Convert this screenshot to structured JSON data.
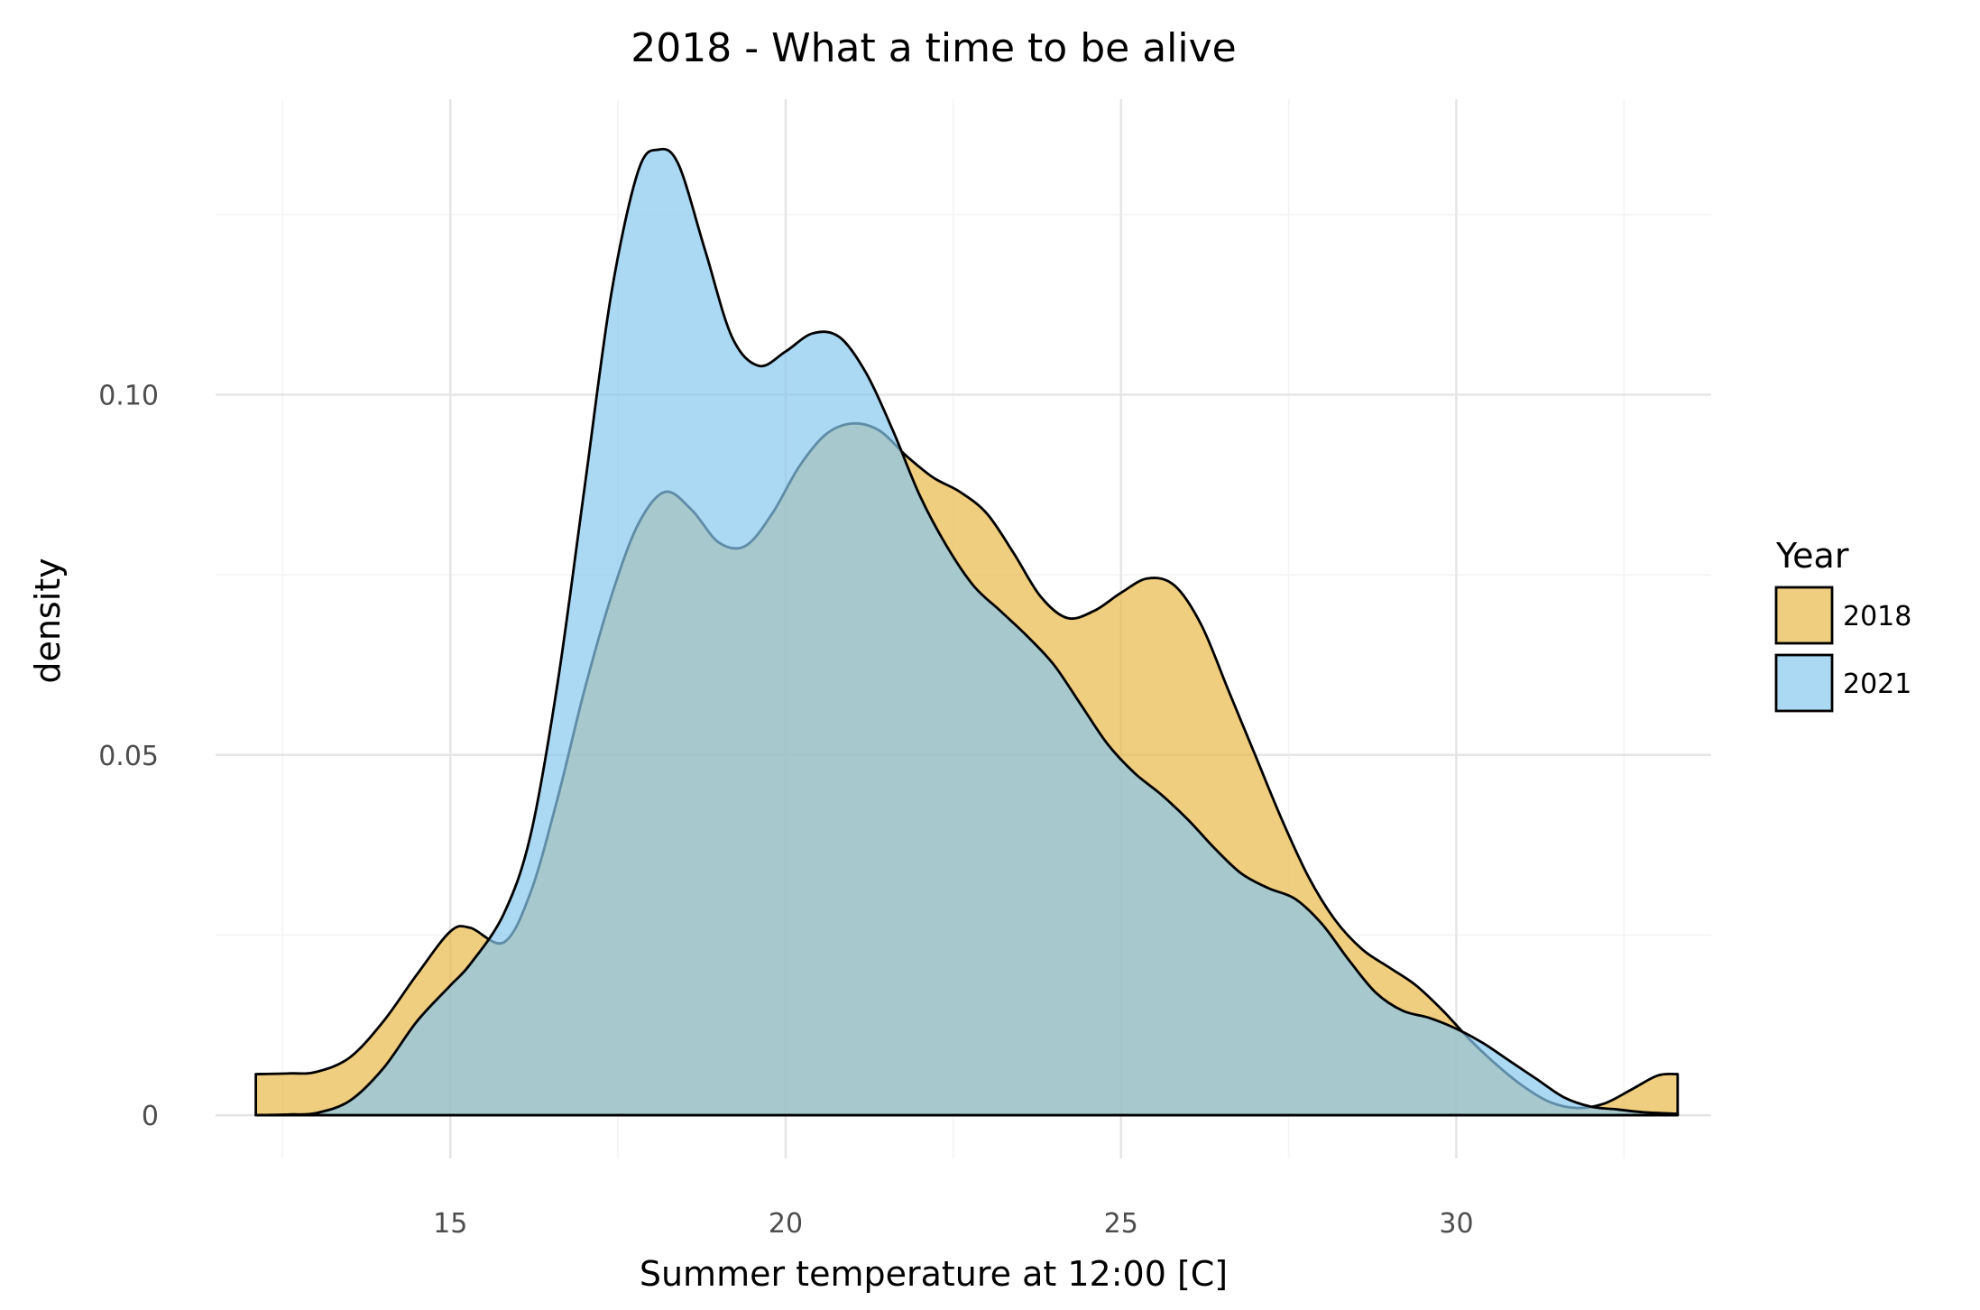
{
  "chart_data": {
    "type": "area",
    "title": "2018 - What a time to be alive",
    "xlabel": "Summer temperature at 12:00 [C]",
    "ylabel": "density",
    "xlim": [
      11.5,
      33.8
    ],
    "ylim": [
      -0.006,
      0.141
    ],
    "x_ticks": [
      15,
      20,
      25,
      30
    ],
    "x_tick_labels": [
      "15",
      "20",
      "25",
      "30"
    ],
    "y_ticks": [
      0,
      0.05,
      0.1
    ],
    "y_tick_labels": [
      "0",
      "0.05",
      "0.10"
    ],
    "grid": true,
    "legend": {
      "title": "Year",
      "position": "right"
    },
    "series": [
      {
        "name": "2018",
        "color": "#E9B949",
        "points": [
          [
            12.1,
            0.0057
          ],
          [
            12.6,
            0.0058
          ],
          [
            13.0,
            0.006
          ],
          [
            13.5,
            0.008
          ],
          [
            14.0,
            0.013
          ],
          [
            14.5,
            0.0195
          ],
          [
            15.0,
            0.0255
          ],
          [
            15.3,
            0.026
          ],
          [
            15.8,
            0.024
          ],
          [
            16.2,
            0.031
          ],
          [
            16.6,
            0.044
          ],
          [
            17.0,
            0.059
          ],
          [
            17.4,
            0.072
          ],
          [
            17.8,
            0.082
          ],
          [
            18.2,
            0.0865
          ],
          [
            18.6,
            0.084
          ],
          [
            19.0,
            0.0795
          ],
          [
            19.4,
            0.079
          ],
          [
            19.8,
            0.0835
          ],
          [
            20.2,
            0.09
          ],
          [
            20.6,
            0.0945
          ],
          [
            21.0,
            0.096
          ],
          [
            21.4,
            0.095
          ],
          [
            21.8,
            0.0915
          ],
          [
            22.2,
            0.0885
          ],
          [
            22.6,
            0.0865
          ],
          [
            23.0,
            0.0835
          ],
          [
            23.4,
            0.078
          ],
          [
            23.8,
            0.072
          ],
          [
            24.2,
            0.069
          ],
          [
            24.6,
            0.07
          ],
          [
            25.0,
            0.0725
          ],
          [
            25.4,
            0.0745
          ],
          [
            25.8,
            0.0735
          ],
          [
            26.2,
            0.068
          ],
          [
            26.6,
            0.059
          ],
          [
            27.0,
            0.05
          ],
          [
            27.4,
            0.041
          ],
          [
            27.8,
            0.033
          ],
          [
            28.2,
            0.027
          ],
          [
            28.6,
            0.023
          ],
          [
            29.0,
            0.0205
          ],
          [
            29.4,
            0.018
          ],
          [
            29.8,
            0.0145
          ],
          [
            30.2,
            0.0105
          ],
          [
            30.6,
            0.007
          ],
          [
            31.0,
            0.004
          ],
          [
            31.4,
            0.0018
          ],
          [
            31.8,
            0.001
          ],
          [
            32.2,
            0.0016
          ],
          [
            32.6,
            0.0035
          ],
          [
            33.0,
            0.0055
          ],
          [
            33.3,
            0.0057
          ]
        ]
      },
      {
        "name": "2021",
        "color": "#87C7EE",
        "points": [
          [
            12.1,
            0.0
          ],
          [
            12.6,
            0.0001
          ],
          [
            13.0,
            0.0003
          ],
          [
            13.5,
            0.002
          ],
          [
            14.0,
            0.0065
          ],
          [
            14.5,
            0.013
          ],
          [
            15.0,
            0.018
          ],
          [
            15.3,
            0.021
          ],
          [
            15.8,
            0.028
          ],
          [
            16.2,
            0.039
          ],
          [
            16.6,
            0.06
          ],
          [
            17.0,
            0.087
          ],
          [
            17.4,
            0.114
          ],
          [
            17.8,
            0.131
          ],
          [
            18.1,
            0.134
          ],
          [
            18.4,
            0.132
          ],
          [
            18.8,
            0.12
          ],
          [
            19.2,
            0.108
          ],
          [
            19.6,
            0.104
          ],
          [
            20.0,
            0.106
          ],
          [
            20.4,
            0.1085
          ],
          [
            20.8,
            0.108
          ],
          [
            21.2,
            0.103
          ],
          [
            21.6,
            0.095
          ],
          [
            22.0,
            0.086
          ],
          [
            22.4,
            0.079
          ],
          [
            22.8,
            0.0735
          ],
          [
            23.2,
            0.07
          ],
          [
            23.6,
            0.0665
          ],
          [
            24.0,
            0.0625
          ],
          [
            24.4,
            0.057
          ],
          [
            24.8,
            0.0515
          ],
          [
            25.2,
            0.0475
          ],
          [
            25.6,
            0.0445
          ],
          [
            26.0,
            0.041
          ],
          [
            26.4,
            0.037
          ],
          [
            26.8,
            0.0335
          ],
          [
            27.2,
            0.0315
          ],
          [
            27.6,
            0.03
          ],
          [
            28.0,
            0.0265
          ],
          [
            28.4,
            0.0215
          ],
          [
            28.8,
            0.017
          ],
          [
            29.2,
            0.0145
          ],
          [
            29.6,
            0.0135
          ],
          [
            30.0,
            0.012
          ],
          [
            30.4,
            0.01
          ],
          [
            30.8,
            0.0075
          ],
          [
            31.2,
            0.005
          ],
          [
            31.6,
            0.0025
          ],
          [
            32.0,
            0.0012
          ],
          [
            32.4,
            0.0008
          ],
          [
            32.8,
            0.0004
          ],
          [
            33.3,
            0.0002
          ]
        ]
      }
    ]
  }
}
